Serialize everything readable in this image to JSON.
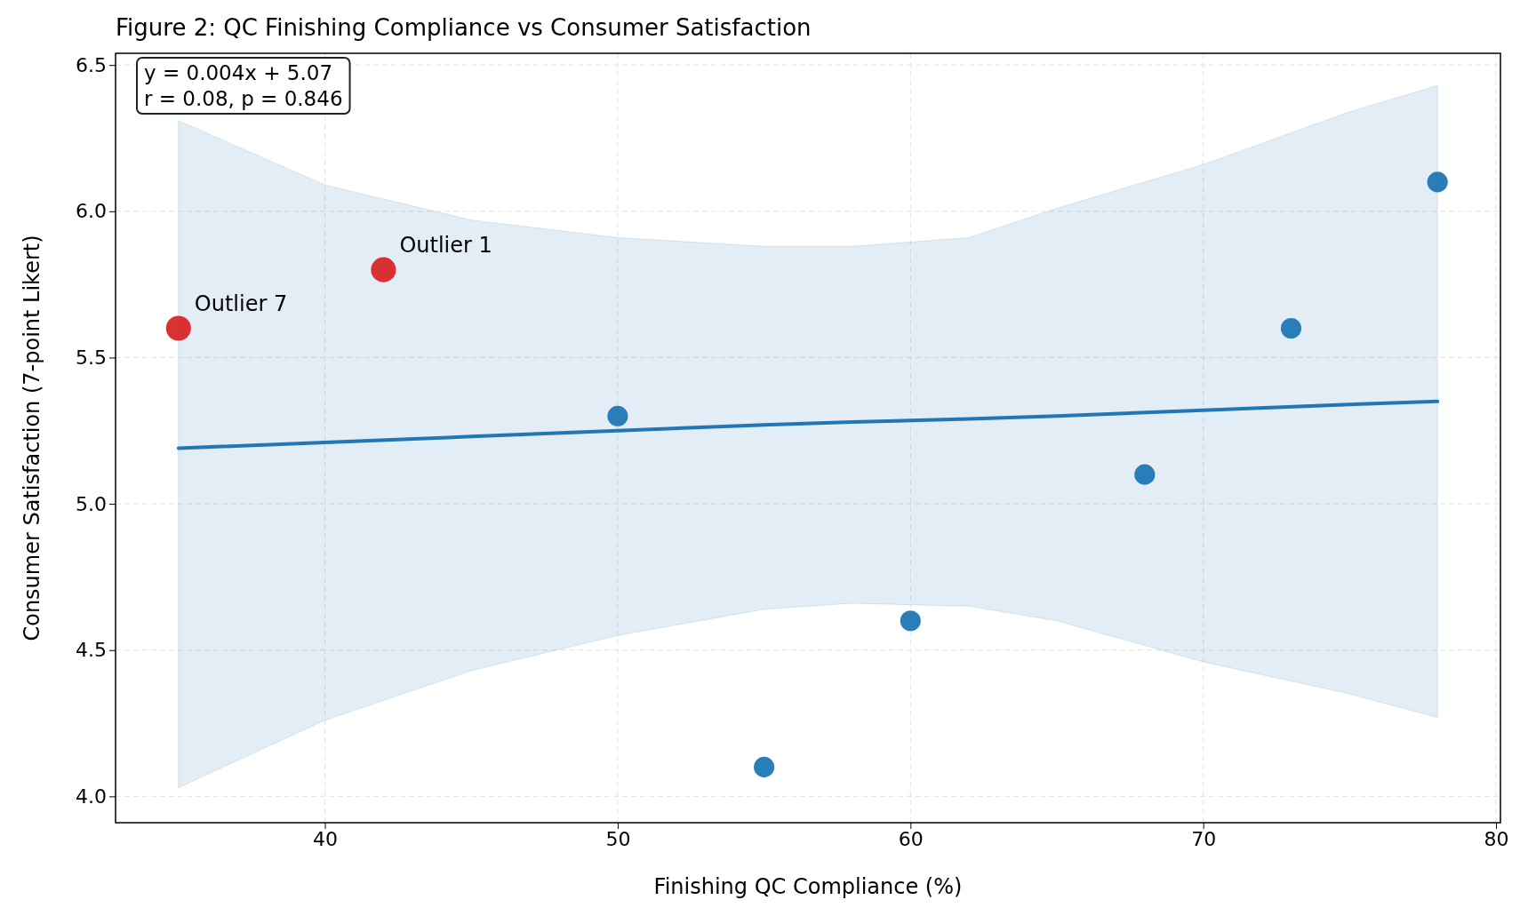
{
  "chart_data": {
    "type": "scatter",
    "title": "Figure 2: QC Finishing Compliance vs Consumer Satisfaction",
    "xlabel": "Finishing QC Compliance (%)",
    "ylabel": "Consumer Satisfaction (7-point Likert)",
    "xlim": [
      32.85,
      80.15
    ],
    "xticks": [
      40,
      50,
      60,
      70,
      80
    ],
    "ylim": [
      3.91,
      6.54
    ],
    "yticks": [
      {
        "value": 4,
        "label": "4.0"
      },
      {
        "value": 4.5,
        "label": "4.5"
      },
      {
        "value": 5,
        "label": "5.0"
      },
      {
        "value": 5.5,
        "label": "5.5"
      },
      {
        "value": 6,
        "label": "6.0"
      },
      {
        "value": 6.5,
        "label": "6.5"
      }
    ],
    "grid": true,
    "series": [
      {
        "type": "line",
        "marker": "none",
        "color": "#1f77b4",
        "x": [
          35,
          40,
          45,
          50,
          55,
          58,
          62,
          65,
          70,
          75,
          78
        ],
        "values": [
          5.19,
          5.21,
          5.23,
          5.25,
          5.27,
          5.28,
          5.29,
          5.3,
          5.32,
          5.34,
          5.35
        ],
        "lower": [
          4.03,
          4.26,
          4.43,
          4.55,
          4.64,
          4.66,
          4.65,
          4.6,
          4.46,
          4.35,
          4.27
        ],
        "upper": [
          6.31,
          6.09,
          5.97,
          5.91,
          5.88,
          5.88,
          5.91,
          6.01,
          6.16,
          6.34,
          6.43
        ]
      },
      {
        "marker": "circle",
        "color": "#1f77b4",
        "x": [
          50,
          55,
          60,
          68,
          73,
          78
        ],
        "values": [
          5.3,
          4.1,
          4.6,
          5.1,
          5.6,
          6.1
        ]
      },
      {
        "marker": "circle",
        "color": "#d62728",
        "x": [
          35,
          42
        ],
        "values": [
          5.6,
          5.8
        ]
      }
    ],
    "annotations": [
      "y = 0.004x + 5.07\nr = 0.08, p = 0.846",
      {
        "text": "Outlier 1",
        "x": 42,
        "y": 5.8
      },
      {
        "text": "Outlier 7",
        "x": 35,
        "y": 5.6
      }
    ]
  }
}
